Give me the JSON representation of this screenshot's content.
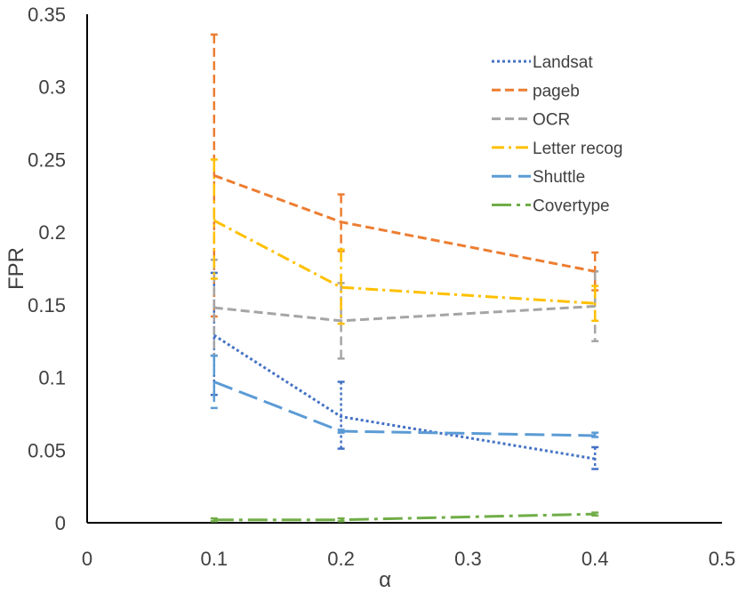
{
  "chart_data": {
    "type": "line",
    "title": "",
    "xlabel": "α",
    "ylabel": "FPR",
    "xlim": [
      0,
      0.5
    ],
    "ylim": [
      0,
      0.35
    ],
    "xticks": [
      "0",
      "0.1",
      "0.2",
      "0.3",
      "0.4",
      "0.5"
    ],
    "yticks": [
      "0",
      "0.05",
      "0.1",
      "0.15",
      "0.2",
      "0.25",
      "0.3",
      "0.35"
    ],
    "grid": false,
    "legend_position": "top-right",
    "x": [
      0.1,
      0.2,
      0.4
    ],
    "series": [
      {
        "name": "Landsat",
        "color": "#4472C4",
        "dash": "dotted",
        "values": [
          0.129,
          0.073,
          0.044
        ],
        "error_low": [
          0.088,
          0.051,
          0.037
        ],
        "error_high": [
          0.172,
          0.097,
          0.052
        ]
      },
      {
        "name": "pageb",
        "color": "#ED7D31",
        "dash": "dashed",
        "values": [
          0.239,
          0.207,
          0.173
        ],
        "error_low": [
          0.142,
          0.187,
          0.16
        ],
        "error_high": [
          0.336,
          0.226,
          0.186
        ]
      },
      {
        "name": "OCR",
        "color": "#A5A5A5",
        "dash": "dashed",
        "values": [
          0.148,
          0.139,
          0.149
        ],
        "error_low": [
          0.115,
          0.113,
          0.125
        ],
        "error_high": [
          0.181,
          0.165,
          0.173
        ]
      },
      {
        "name": "Letter recog",
        "color": "#FFC000",
        "dash": "dash-dot",
        "values": [
          0.208,
          0.162,
          0.151
        ],
        "error_low": [
          0.168,
          0.137,
          0.139
        ],
        "error_high": [
          0.25,
          0.188,
          0.163
        ]
      },
      {
        "name": "Shuttle",
        "color": "#5B9BD5",
        "dash": "long-dash",
        "values": [
          0.097,
          0.063,
          0.06
        ],
        "error_low": [
          0.079,
          0.062,
          0.059
        ],
        "error_high": [
          0.115,
          0.064,
          0.062
        ]
      },
      {
        "name": "Covertype",
        "color": "#70AD47",
        "dash": "long-dash-dot",
        "values": [
          0.002,
          0.002,
          0.006
        ],
        "error_low": [
          0.001,
          0.001,
          0.005
        ],
        "error_high": [
          0.003,
          0.003,
          0.007
        ]
      }
    ]
  }
}
